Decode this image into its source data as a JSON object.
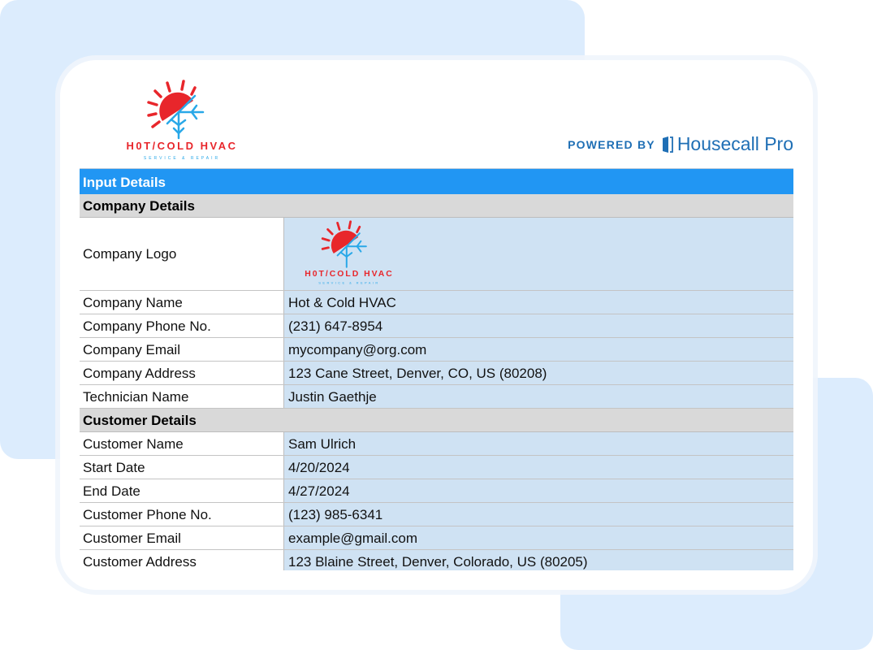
{
  "brand": {
    "logo_text": "H0T/COLD HVAC",
    "logo_tagline": "SERVICE & REPAIR",
    "powered_by": "POWERED BY",
    "provider": "Housecall Pro",
    "colors": {
      "accent": "#2196f3",
      "logo_red": "#e8262b",
      "logo_blue": "#29a8e8",
      "provider_blue": "#1f6fb5",
      "value_bg": "#cfe2f3"
    }
  },
  "table": {
    "title": "Input Details",
    "company_section": "Company Details",
    "logo_label": "Company Logo",
    "company_rows": [
      {
        "label": "Company Name",
        "value": "Hot & Cold HVAC"
      },
      {
        "label": "Company Phone No.",
        "value": "(231) 647-8954"
      },
      {
        "label": "Company Email",
        "value": "mycompany@org.com"
      },
      {
        "label": "Company Address",
        "value": "123 Cane Street, Denver, CO, US (80208)"
      },
      {
        "label": "Technician Name",
        "value": "Justin Gaethje"
      }
    ],
    "customer_section": "Customer Details",
    "customer_rows": [
      {
        "label": "Customer Name",
        "value": "Sam Ulrich"
      },
      {
        "label": "Start Date",
        "value": "4/20/2024"
      },
      {
        "label": "End Date",
        "value": "4/27/2024"
      },
      {
        "label": "Customer Phone No.",
        "value": "(123) 985-6341"
      },
      {
        "label": "Customer Email",
        "value": "example@gmail.com"
      },
      {
        "label": "Customer Address",
        "value": "123 Blaine Street, Denver, Colorado, US (80205)"
      }
    ]
  }
}
